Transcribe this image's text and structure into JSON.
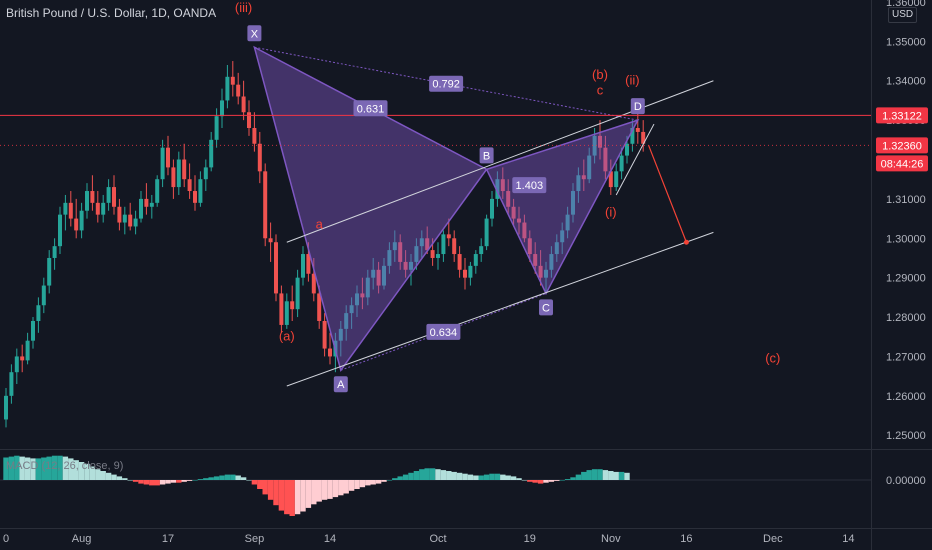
{
  "header": {
    "symbol_title": "British Pound / U.S. Dollar, 1D, OANDA",
    "currency": "USD"
  },
  "macd": {
    "label": "MACD (12, 26, close, 9)",
    "zero_label": "0.00000"
  },
  "colors": {
    "background": "#131722",
    "up": "#26a69a",
    "down": "#ef5350",
    "pattern_fill": "#7e57c2",
    "label_bg": "#7b68b5",
    "annotation_red": "#f44336",
    "channel_line": "#d1d4dc",
    "price_line_red": "#f23645",
    "macd_up_strong": "#26a69a",
    "macd_up_weak": "#b2dfdb",
    "macd_down_strong": "#ff5252",
    "macd_down_weak": "#ffcdd2"
  },
  "chart_data": {
    "type": "candlestick",
    "y_axis": {
      "ticks": [
        "1.36000",
        "1.35000",
        "1.34000",
        "1.33000",
        "1.32000",
        "1.31000",
        "1.30000",
        "1.29000",
        "1.28000",
        "1.27000",
        "1.26000",
        "1.25000"
      ],
      "tick_values": [
        1.36,
        1.35,
        1.34,
        1.33,
        1.32,
        1.31,
        1.3,
        1.29,
        1.28,
        1.27,
        1.26,
        1.25
      ],
      "range": [
        1.2465,
        1.3605
      ]
    },
    "x_axis": {
      "ticks": [
        "0",
        "Aug",
        "17",
        "Sep",
        "14",
        "Oct",
        "19",
        "Nov",
        "16",
        "Dec",
        "14"
      ],
      "tick_bar_index": [
        0,
        14,
        30,
        46,
        60,
        80,
        97,
        112,
        126,
        142,
        156
      ]
    },
    "price_labels": [
      {
        "value": 1.33122,
        "text": "1.33122",
        "color": "#f23645"
      },
      {
        "value": 1.3236,
        "text": "1.32360",
        "color": "#f23645"
      },
      {
        "text": "08:44:26",
        "color": "#f23645"
      }
    ],
    "candles": [
      [
        1.254,
        1.262,
        1.252,
        1.26
      ],
      [
        1.26,
        1.268,
        1.258,
        1.266
      ],
      [
        1.266,
        1.272,
        1.263,
        1.27
      ],
      [
        1.27,
        1.273,
        1.266,
        1.269
      ],
      [
        1.269,
        1.276,
        1.268,
        1.274
      ],
      [
        1.274,
        1.28,
        1.272,
        1.279
      ],
      [
        1.279,
        1.285,
        1.276,
        1.283
      ],
      [
        1.283,
        1.29,
        1.281,
        1.288
      ],
      [
        1.288,
        1.297,
        1.286,
        1.295
      ],
      [
        1.295,
        1.3,
        1.292,
        1.298
      ],
      [
        1.298,
        1.308,
        1.296,
        1.306
      ],
      [
        1.306,
        1.311,
        1.302,
        1.309
      ],
      [
        1.309,
        1.312,
        1.303,
        1.305
      ],
      [
        1.305,
        1.31,
        1.3,
        1.302
      ],
      [
        1.302,
        1.309,
        1.3,
        1.307
      ],
      [
        1.307,
        1.314,
        1.305,
        1.312
      ],
      [
        1.312,
        1.316,
        1.307,
        1.309
      ],
      [
        1.309,
        1.312,
        1.304,
        1.306
      ],
      [
        1.306,
        1.311,
        1.304,
        1.309
      ],
      [
        1.309,
        1.315,
        1.307,
        1.313
      ],
      [
        1.313,
        1.316,
        1.306,
        1.308
      ],
      [
        1.308,
        1.31,
        1.302,
        1.304
      ],
      [
        1.304,
        1.308,
        1.301,
        1.306
      ],
      [
        1.306,
        1.309,
        1.302,
        1.303
      ],
      [
        1.303,
        1.307,
        1.301,
        1.305
      ],
      [
        1.305,
        1.312,
        1.304,
        1.31
      ],
      [
        1.31,
        1.314,
        1.306,
        1.308
      ],
      [
        1.308,
        1.311,
        1.305,
        1.309
      ],
      [
        1.309,
        1.316,
        1.308,
        1.315
      ],
      [
        1.315,
        1.325,
        1.313,
        1.323
      ],
      [
        1.323,
        1.326,
        1.316,
        1.318
      ],
      [
        1.318,
        1.32,
        1.31,
        1.313
      ],
      [
        1.313,
        1.322,
        1.311,
        1.32
      ],
      [
        1.32,
        1.324,
        1.313,
        1.315
      ],
      [
        1.315,
        1.319,
        1.31,
        1.312
      ],
      [
        1.312,
        1.316,
        1.307,
        1.309
      ],
      [
        1.309,
        1.317,
        1.308,
        1.315
      ],
      [
        1.315,
        1.32,
        1.312,
        1.318
      ],
      [
        1.318,
        1.327,
        1.317,
        1.325
      ],
      [
        1.325,
        1.333,
        1.323,
        1.331
      ],
      [
        1.331,
        1.338,
        1.328,
        1.335
      ],
      [
        1.335,
        1.344,
        1.333,
        1.341
      ],
      [
        1.341,
        1.345,
        1.336,
        1.339
      ],
      [
        1.339,
        1.342,
        1.334,
        1.336
      ],
      [
        1.336,
        1.34,
        1.33,
        1.332
      ],
      [
        1.332,
        1.335,
        1.326,
        1.328
      ],
      [
        1.328,
        1.332,
        1.322,
        1.324
      ],
      [
        1.324,
        1.327,
        1.314,
        1.317
      ],
      [
        1.317,
        1.319,
        1.298,
        1.3
      ],
      [
        1.3,
        1.304,
        1.294,
        1.299
      ],
      [
        1.299,
        1.301,
        1.284,
        1.286
      ],
      [
        1.286,
        1.288,
        1.276,
        1.278
      ],
      [
        1.278,
        1.286,
        1.277,
        1.284
      ],
      [
        1.284,
        1.288,
        1.279,
        1.282
      ],
      [
        1.282,
        1.292,
        1.28,
        1.29
      ],
      [
        1.29,
        1.298,
        1.288,
        1.296
      ],
      [
        1.296,
        1.299,
        1.289,
        1.291
      ],
      [
        1.291,
        1.295,
        1.284,
        1.286
      ],
      [
        1.286,
        1.288,
        1.277,
        1.279
      ],
      [
        1.279,
        1.281,
        1.27,
        1.272
      ],
      [
        1.272,
        1.276,
        1.268,
        1.27
      ],
      [
        1.27,
        1.276,
        1.266,
        1.274
      ],
      [
        1.274,
        1.279,
        1.27,
        1.277
      ],
      [
        1.277,
        1.283,
        1.274,
        1.281
      ],
      [
        1.281,
        1.285,
        1.277,
        1.283
      ],
      [
        1.283,
        1.288,
        1.28,
        1.286
      ],
      [
        1.286,
        1.29,
        1.282,
        1.285
      ],
      [
        1.285,
        1.292,
        1.283,
        1.29
      ],
      [
        1.29,
        1.295,
        1.287,
        1.292
      ],
      [
        1.292,
        1.294,
        1.286,
        1.288
      ],
      [
        1.288,
        1.295,
        1.287,
        1.293
      ],
      [
        1.293,
        1.299,
        1.291,
        1.297
      ],
      [
        1.297,
        1.302,
        1.294,
        1.299
      ],
      [
        1.299,
        1.301,
        1.292,
        1.294
      ],
      [
        1.294,
        1.297,
        1.29,
        1.292
      ],
      [
        1.292,
        1.296,
        1.288,
        1.294
      ],
      [
        1.294,
        1.3,
        1.292,
        1.298
      ],
      [
        1.298,
        1.302,
        1.295,
        1.3
      ],
      [
        1.3,
        1.303,
        1.296,
        1.297
      ],
      [
        1.297,
        1.3,
        1.293,
        1.295
      ],
      [
        1.295,
        1.299,
        1.292,
        1.296
      ],
      [
        1.296,
        1.302,
        1.294,
        1.301
      ],
      [
        1.301,
        1.305,
        1.298,
        1.3
      ],
      [
        1.3,
        1.302,
        1.294,
        1.296
      ],
      [
        1.296,
        1.298,
        1.29,
        1.292
      ],
      [
        1.292,
        1.295,
        1.287,
        1.29
      ],
      [
        1.29,
        1.294,
        1.288,
        1.293
      ],
      [
        1.293,
        1.297,
        1.291,
        1.296
      ],
      [
        1.296,
        1.3,
        1.294,
        1.298
      ],
      [
        1.298,
        1.306,
        1.297,
        1.305
      ],
      [
        1.305,
        1.312,
        1.303,
        1.31
      ],
      [
        1.31,
        1.317,
        1.308,
        1.315
      ],
      [
        1.315,
        1.318,
        1.31,
        1.312
      ],
      [
        1.312,
        1.315,
        1.306,
        1.308
      ],
      [
        1.308,
        1.31,
        1.303,
        1.305
      ],
      [
        1.305,
        1.308,
        1.301,
        1.304
      ],
      [
        1.304,
        1.306,
        1.299,
        1.3
      ],
      [
        1.3,
        1.302,
        1.294,
        1.296
      ],
      [
        1.296,
        1.299,
        1.291,
        1.293
      ],
      [
        1.293,
        1.297,
        1.288,
        1.29
      ],
      [
        1.29,
        1.294,
        1.286,
        1.292
      ],
      [
        1.292,
        1.298,
        1.29,
        1.296
      ],
      [
        1.296,
        1.301,
        1.294,
        1.299
      ],
      [
        1.299,
        1.304,
        1.296,
        1.302
      ],
      [
        1.302,
        1.308,
        1.3,
        1.306
      ],
      [
        1.306,
        1.314,
        1.304,
        1.312
      ],
      [
        1.312,
        1.318,
        1.309,
        1.316
      ],
      [
        1.316,
        1.32,
        1.312,
        1.315
      ],
      [
        1.315,
        1.323,
        1.314,
        1.321
      ],
      [
        1.321,
        1.328,
        1.319,
        1.326
      ],
      [
        1.326,
        1.33,
        1.32,
        1.323
      ],
      [
        1.323,
        1.326,
        1.315,
        1.317
      ],
      [
        1.317,
        1.32,
        1.311,
        1.313
      ],
      [
        1.313,
        1.319,
        1.312,
        1.317
      ],
      [
        1.317,
        1.323,
        1.315,
        1.321
      ],
      [
        1.321,
        1.326,
        1.319,
        1.324
      ],
      [
        1.324,
        1.33,
        1.322,
        1.328
      ],
      [
        1.328,
        1.332,
        1.324,
        1.327
      ],
      [
        1.327,
        1.33,
        1.322,
        1.324
      ]
    ],
    "pattern": {
      "name": "",
      "points": [
        {
          "label": "X",
          "bar": 46,
          "value": 1.3485
        },
        {
          "label": "A",
          "bar": 62,
          "value": 1.2665
        },
        {
          "label": "B",
          "bar": 89,
          "value": 1.3175
        },
        {
          "label": "C",
          "bar": 100,
          "value": 1.286
        },
        {
          "label": "D",
          "bar": 117,
          "value": 1.33
        }
      ],
      "ratios": [
        {
          "text": "0.792",
          "between": "X-D"
        },
        {
          "text": "0.631",
          "between": "X-B"
        },
        {
          "text": "1.403",
          "between": "A-D"
        },
        {
          "text": "0.634",
          "between": "A-C"
        }
      ]
    },
    "annotations": [
      {
        "text": "(iii)",
        "bar": 44,
        "value": 1.3575,
        "color": "#f44336"
      },
      {
        "text": "a",
        "bar": 58,
        "value": 1.3025,
        "color": "#f44336"
      },
      {
        "text": "(a)",
        "bar": 52,
        "value": 1.274,
        "color": "#f44336"
      },
      {
        "text": "(b)",
        "bar": 110,
        "value": 1.3405,
        "color": "#f44336"
      },
      {
        "text": "c",
        "bar": 110,
        "value": 1.3365,
        "color": "#f44336"
      },
      {
        "text": "(ii)",
        "bar": 116,
        "value": 1.339,
        "color": "#f44336"
      },
      {
        "text": "(i)",
        "bar": 112,
        "value": 1.3055,
        "color": "#f44336"
      },
      {
        "text": "(c)",
        "bar": 142,
        "value": 1.2685,
        "color": "#f44336"
      }
    ],
    "macd_histogram": [
      0.0025,
      0.0026,
      0.0027,
      0.0026,
      0.0025,
      0.0024,
      0.0024,
      0.0025,
      0.0026,
      0.0027,
      0.0027,
      0.0026,
      0.0024,
      0.0022,
      0.002,
      0.0018,
      0.0015,
      0.0012,
      0.001,
      0.0008,
      0.0006,
      0.0004,
      0.0002,
      0.0,
      -0.0002,
      -0.0004,
      -0.0005,
      -0.0006,
      -0.0006,
      -0.0005,
      -0.0004,
      -0.0003,
      -0.0003,
      -0.0002,
      -0.0001,
      0.0,
      0.0001,
      0.0002,
      0.0003,
      0.0004,
      0.0005,
      0.0006,
      0.0006,
      0.0005,
      0.0003,
      0.0,
      -0.0005,
      -0.001,
      -0.0016,
      -0.0022,
      -0.0028,
      -0.0034,
      -0.0038,
      -0.004,
      -0.0038,
      -0.0035,
      -0.0031,
      -0.0027,
      -0.0024,
      -0.0022,
      -0.0021,
      -0.0019,
      -0.0017,
      -0.0015,
      -0.0012,
      -0.001,
      -0.0008,
      -0.0006,
      -0.0005,
      -0.0004,
      -0.0002,
      0.0,
      0.0002,
      0.0004,
      0.0006,
      0.0008,
      0.001,
      0.0012,
      0.0013,
      0.0013,
      0.0012,
      0.0011,
      0.001,
      0.0009,
      0.0008,
      0.0007,
      0.0006,
      0.0005,
      0.0005,
      0.0006,
      0.0007,
      0.0007,
      0.0006,
      0.0005,
      0.0004,
      0.0002,
      0.0,
      -0.0002,
      -0.0003,
      -0.0004,
      -0.0003,
      -0.0002,
      -0.0001,
      0.0,
      0.0001,
      0.0003,
      0.0006,
      0.0009,
      0.0011,
      0.0012,
      0.0012,
      0.0011,
      0.001,
      0.0009,
      0.0009,
      0.0008
    ]
  }
}
